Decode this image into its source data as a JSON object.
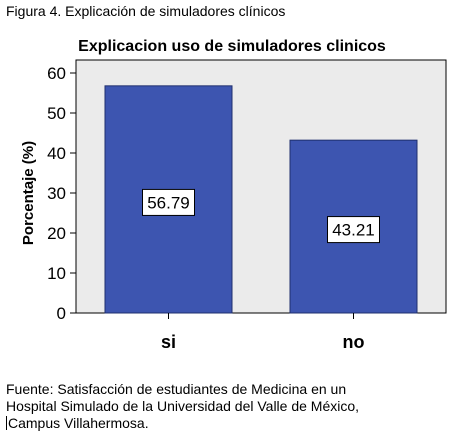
{
  "figure_caption": "Figura 4. Explicación de simuladores clínicos",
  "source_note": {
    "lines": [
      "Fuente: Satisfacción de estudiantes de Medicina en un",
      "Hospital Simulado de la Universidad del Valle de México,",
      "Campus Villahermosa."
    ]
  },
  "colors": {
    "plot_background": "#ebebeb",
    "bar_fill": "#3d55b0",
    "bar_stroke": "#1f2f6e"
  },
  "chart_data": {
    "type": "bar",
    "title": "Explicacion uso de simuladores clinicos",
    "xlabel": "",
    "ylabel": "Porcentaje (%)",
    "categories": [
      "si",
      "no"
    ],
    "values": [
      56.79,
      43.21
    ],
    "data_labels": [
      "56.79",
      "43.21"
    ],
    "ylim": [
      0,
      60
    ],
    "yticks": [
      0,
      10,
      20,
      30,
      40,
      50,
      60
    ],
    "grid": false,
    "legend": "none"
  }
}
